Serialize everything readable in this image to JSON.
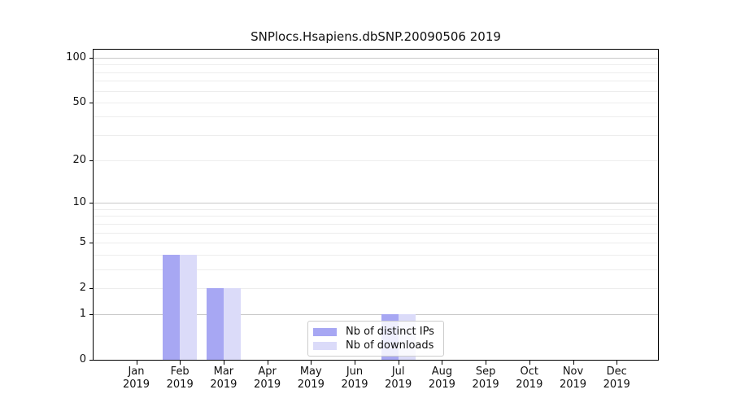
{
  "title": "SNPlocs.Hsapiens.dbSNP.20090506 2019",
  "colors": {
    "distinct_ips_bar": "#a7a7f3",
    "downloads_bar": "#dbdbf9",
    "grid_minor": "#ededed",
    "grid_major": "#c9c9c9",
    "axis": "#000000",
    "legend_border": "#cccccc"
  },
  "legend": {
    "items": [
      {
        "label": "Nb of distinct IPs",
        "color": "#a7a7f3"
      },
      {
        "label": "Nb of downloads",
        "color": "#dbdbf9"
      }
    ]
  },
  "chart_data": {
    "type": "bar",
    "title": "SNPlocs.Hsapiens.dbSNP.20090506 2019",
    "categories": [
      "Jan 2019",
      "Feb 2019",
      "Mar 2019",
      "Apr 2019",
      "May 2019",
      "Jun 2019",
      "Jul 2019",
      "Aug 2019",
      "Sep 2019",
      "Oct 2019",
      "Nov 2019",
      "Dec 2019"
    ],
    "series": [
      {
        "name": "Nb of distinct IPs",
        "color": "#a7a7f3",
        "values": [
          0,
          4,
          2,
          0,
          0,
          0,
          1,
          0,
          0,
          0,
          0,
          0
        ]
      },
      {
        "name": "Nb of downloads",
        "color": "#dbdbf9",
        "values": [
          0,
          4,
          2,
          0,
          0,
          0,
          1,
          0,
          0,
          0,
          0,
          0
        ]
      }
    ],
    "xlabel": "",
    "ylabel": "",
    "y_scale": "log1p",
    "ylim": [
      0,
      113.3
    ],
    "y_ticks": [
      0,
      1,
      2,
      5,
      10,
      20,
      50,
      100
    ],
    "y_major_gridlines": [
      1,
      10,
      100
    ],
    "y_minor_gridlines": [
      2,
      3,
      4,
      5,
      6,
      7,
      8,
      9,
      20,
      30,
      40,
      50,
      60,
      70,
      80,
      90
    ],
    "grid": "horizontal",
    "legend_position": "lower-center-inside"
  }
}
